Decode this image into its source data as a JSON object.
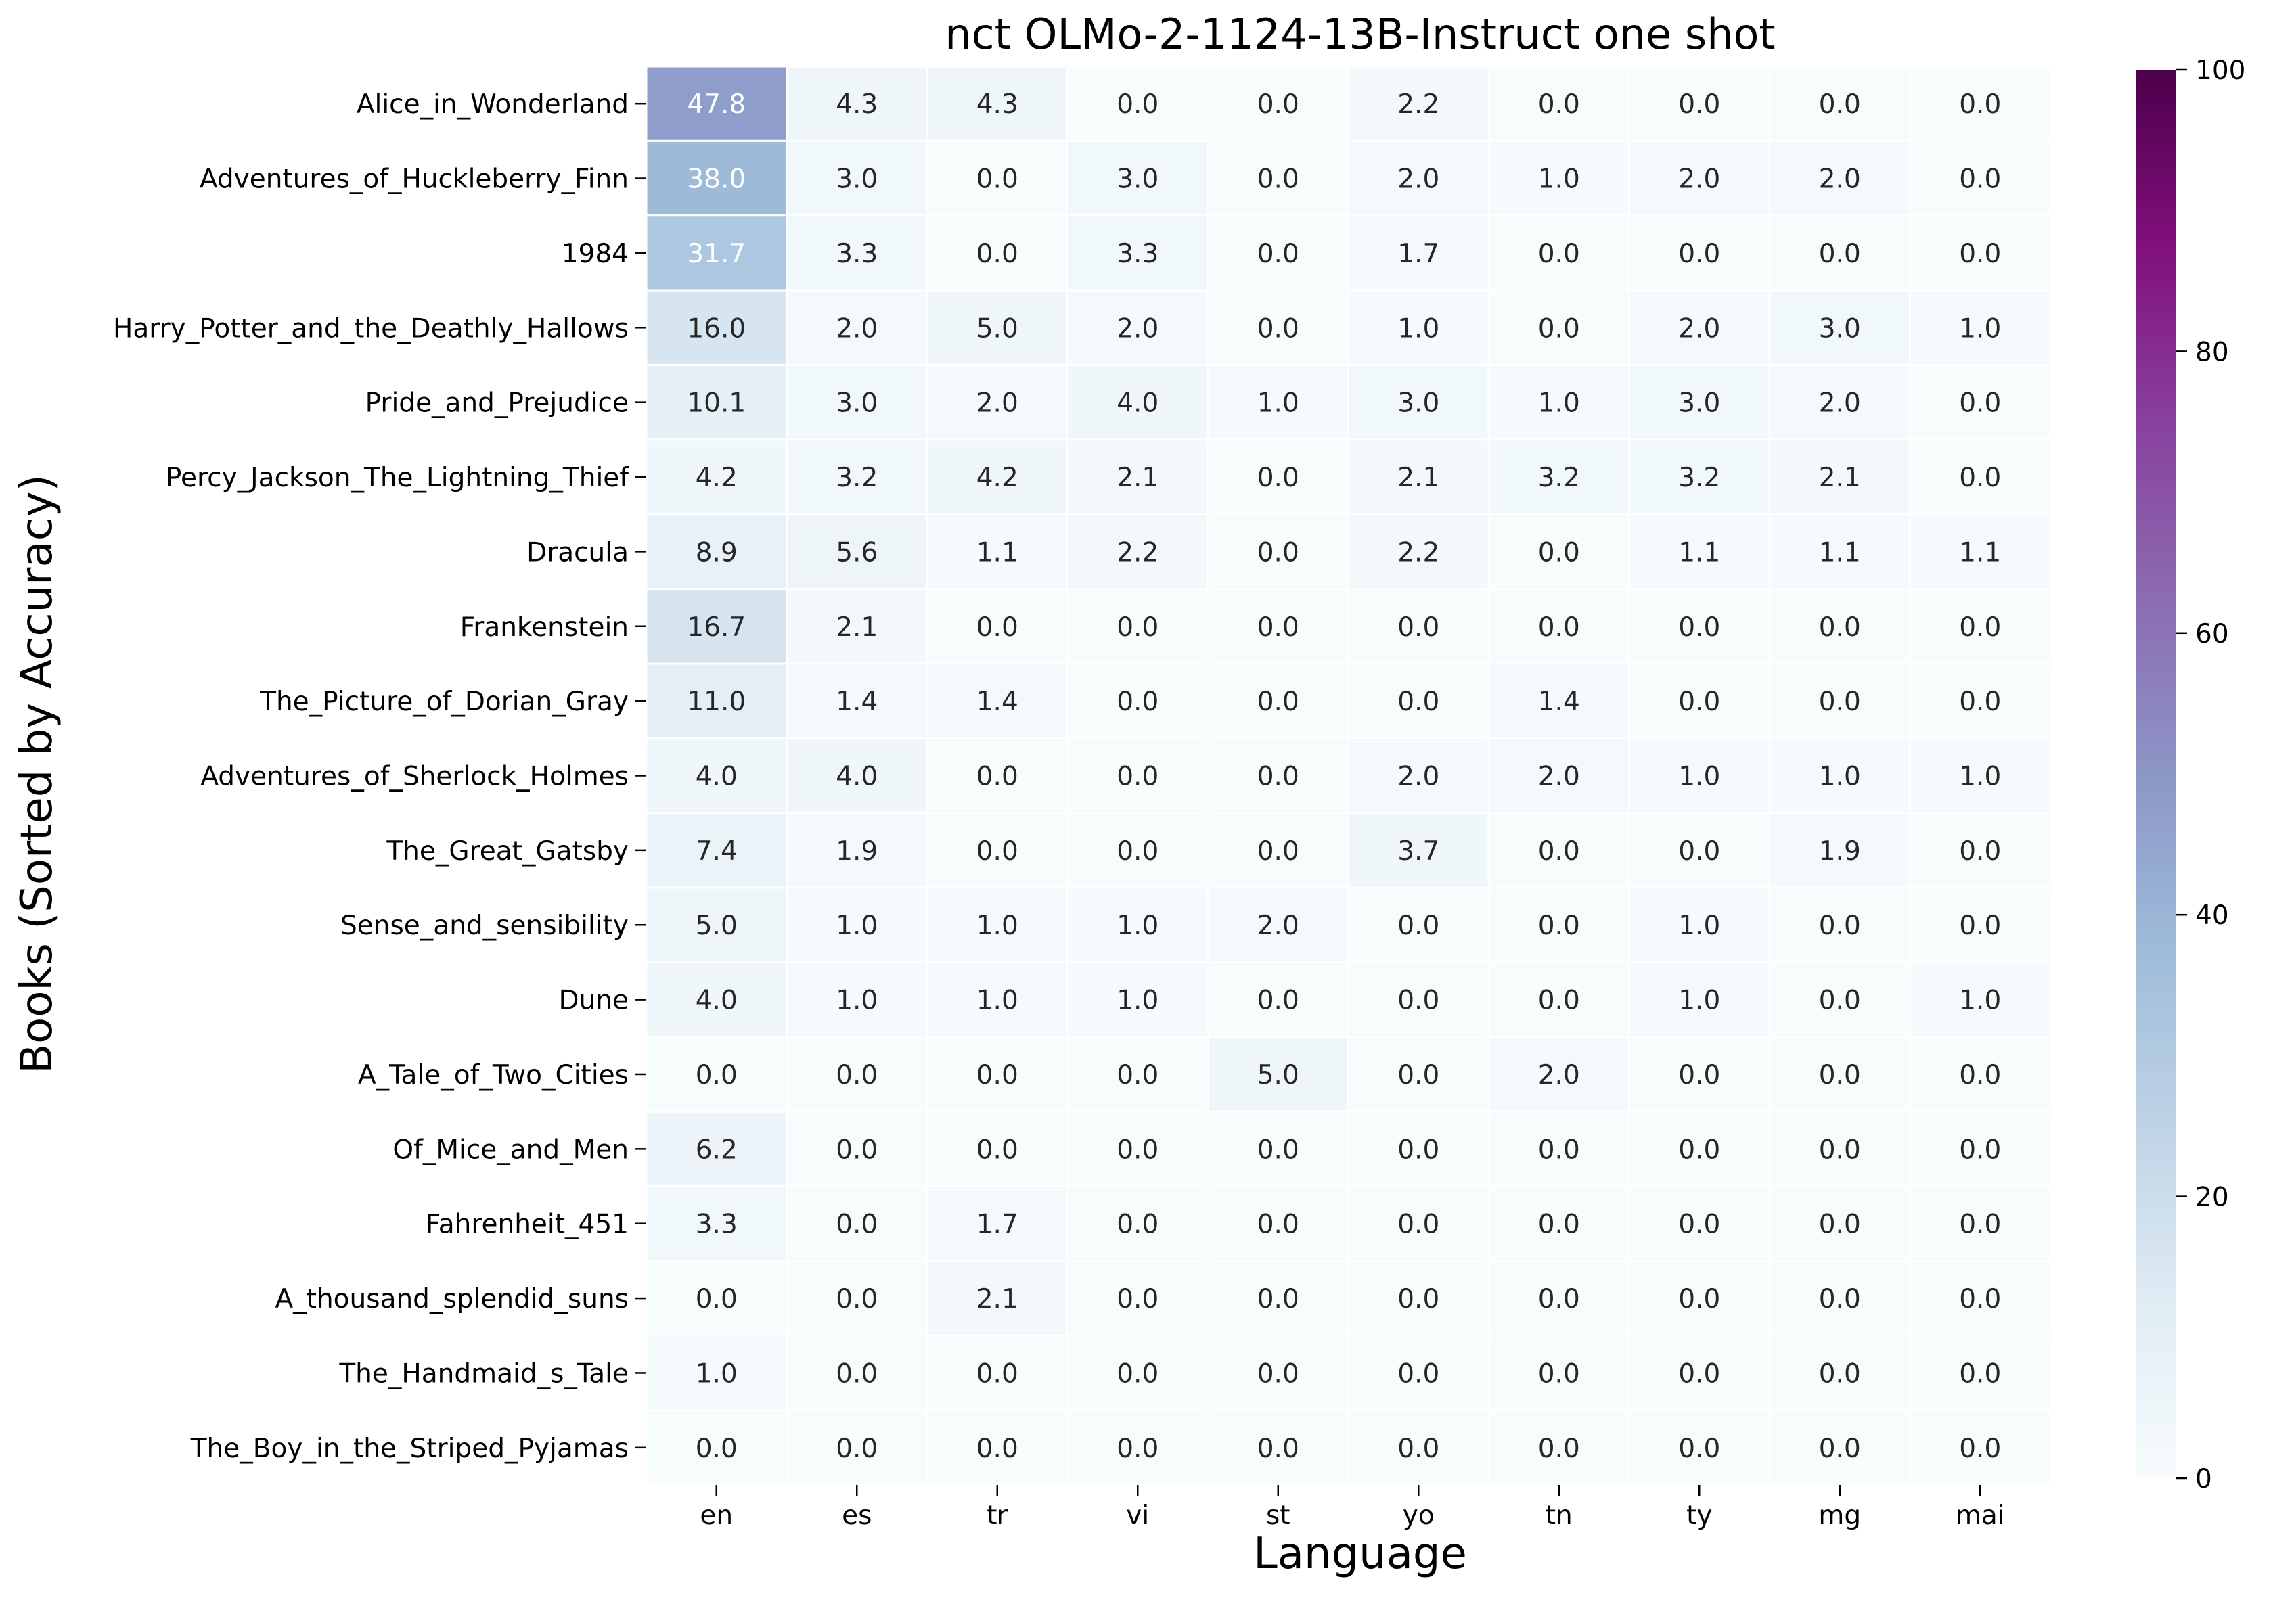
{
  "chart_data": {
    "type": "heatmap",
    "title": "nct OLMo-2-1124-13B-Instruct one shot",
    "xlabel": "Language",
    "ylabel": "Books (Sorted by Accuracy)",
    "x_categories": [
      "en",
      "es",
      "tr",
      "vi",
      "st",
      "yo",
      "tn",
      "ty",
      "mg",
      "mai"
    ],
    "y_categories": [
      "Alice_in_Wonderland",
      "Adventures_of_Huckleberry_Finn",
      "1984",
      "Harry_Potter_and_the_Deathly_Hallows",
      "Pride_and_Prejudice",
      "Percy_Jackson_The_Lightning_Thief",
      "Dracula",
      "Frankenstein",
      "The_Picture_of_Dorian_Gray",
      "Adventures_of_Sherlock_Holmes",
      "The_Great_Gatsby",
      "Sense_and_sensibility",
      "Dune",
      "A_Tale_of_Two_Cities",
      "Of_Mice_and_Men",
      "Fahrenheit_451",
      "A_thousand_splendid_suns",
      "The_Handmaid_s_Tale",
      "The_Boy_in_the_Striped_Pyjamas"
    ],
    "values": [
      [
        47.8,
        4.3,
        4.3,
        0.0,
        0.0,
        2.2,
        0.0,
        0.0,
        0.0,
        0.0
      ],
      [
        38.0,
        3.0,
        0.0,
        3.0,
        0.0,
        2.0,
        1.0,
        2.0,
        2.0,
        0.0
      ],
      [
        31.7,
        3.3,
        0.0,
        3.3,
        0.0,
        1.7,
        0.0,
        0.0,
        0.0,
        0.0
      ],
      [
        16.0,
        2.0,
        5.0,
        2.0,
        0.0,
        1.0,
        0.0,
        2.0,
        3.0,
        1.0
      ],
      [
        10.1,
        3.0,
        2.0,
        4.0,
        1.0,
        3.0,
        1.0,
        3.0,
        2.0,
        0.0
      ],
      [
        4.2,
        3.2,
        4.2,
        2.1,
        0.0,
        2.1,
        3.2,
        3.2,
        2.1,
        0.0
      ],
      [
        8.9,
        5.6,
        1.1,
        2.2,
        0.0,
        2.2,
        0.0,
        1.1,
        1.1,
        1.1
      ],
      [
        16.7,
        2.1,
        0.0,
        0.0,
        0.0,
        0.0,
        0.0,
        0.0,
        0.0,
        0.0
      ],
      [
        11.0,
        1.4,
        1.4,
        0.0,
        0.0,
        0.0,
        1.4,
        0.0,
        0.0,
        0.0
      ],
      [
        4.0,
        4.0,
        0.0,
        0.0,
        0.0,
        2.0,
        2.0,
        1.0,
        1.0,
        1.0
      ],
      [
        7.4,
        1.9,
        0.0,
        0.0,
        0.0,
        3.7,
        0.0,
        0.0,
        1.9,
        0.0
      ],
      [
        5.0,
        1.0,
        1.0,
        1.0,
        2.0,
        0.0,
        0.0,
        1.0,
        0.0,
        0.0
      ],
      [
        4.0,
        1.0,
        1.0,
        1.0,
        0.0,
        0.0,
        0.0,
        1.0,
        0.0,
        1.0
      ],
      [
        0.0,
        0.0,
        0.0,
        0.0,
        5.0,
        0.0,
        2.0,
        0.0,
        0.0,
        0.0
      ],
      [
        6.2,
        0.0,
        0.0,
        0.0,
        0.0,
        0.0,
        0.0,
        0.0,
        0.0,
        0.0
      ],
      [
        3.3,
        0.0,
        1.7,
        0.0,
        0.0,
        0.0,
        0.0,
        0.0,
        0.0,
        0.0
      ],
      [
        0.0,
        0.0,
        2.1,
        0.0,
        0.0,
        0.0,
        0.0,
        0.0,
        0.0,
        0.0
      ],
      [
        1.0,
        0.0,
        0.0,
        0.0,
        0.0,
        0.0,
        0.0,
        0.0,
        0.0,
        0.0
      ],
      [
        0.0,
        0.0,
        0.0,
        0.0,
        0.0,
        0.0,
        0.0,
        0.0,
        0.0,
        0.0
      ]
    ],
    "colorbar": {
      "range": [
        0,
        100
      ],
      "ticks": [
        0,
        20,
        40,
        60,
        80,
        100
      ],
      "colormap": "BuPu",
      "stops": [
        "#f7fcfd",
        "#e0ecf4",
        "#bfd3e6",
        "#9ebcda",
        "#8c96c6",
        "#8c6bb1",
        "#88419d",
        "#810f7c",
        "#4d004b"
      ]
    },
    "annotation_light_text_threshold": 30,
    "grid": false
  }
}
